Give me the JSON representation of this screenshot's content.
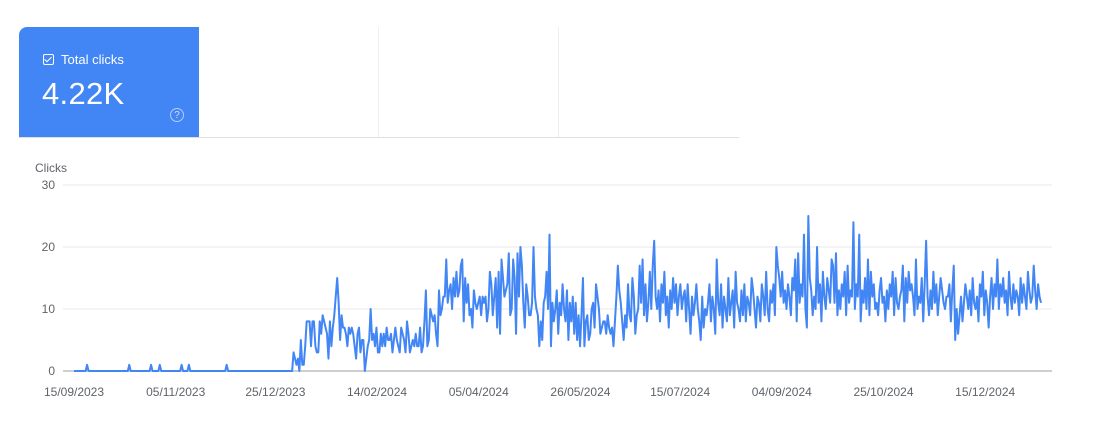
{
  "metric_card": {
    "label": "Total clicks",
    "value": "4.22K",
    "checked": true,
    "help_glyph": "?",
    "color": "#4285f4"
  },
  "chart_data": {
    "type": "line",
    "ylabel": "Clicks",
    "ylim": [
      0,
      30
    ],
    "y_ticks": [
      0,
      10,
      20,
      30
    ],
    "x_ticks": [
      "15/09/2023",
      "05/11/2023",
      "25/12/2023",
      "14/02/2024",
      "05/04/2024",
      "26/05/2024",
      "15/07/2024",
      "04/09/2024",
      "25/10/2024",
      "15/12/2024"
    ],
    "x_range": [
      "15/09/2023",
      "12/01/2025"
    ],
    "grid": true,
    "series": [
      {
        "color": "#4285f4",
        "values": [
          0,
          0,
          0,
          0,
          0,
          0,
          0,
          0,
          0,
          1,
          0,
          0,
          0,
          0,
          0,
          0,
          0,
          0,
          0,
          0,
          0,
          0,
          0,
          0,
          0,
          0,
          0,
          0,
          0,
          0,
          0,
          0,
          0,
          0,
          0,
          0,
          0,
          0,
          1,
          0,
          0,
          0,
          0,
          0,
          0,
          0,
          0,
          0,
          0,
          0,
          0,
          0,
          0,
          1,
          0,
          0,
          0,
          0,
          0,
          1,
          0,
          0,
          0,
          0,
          0,
          0,
          0,
          0,
          0,
          0,
          0,
          0,
          0,
          0,
          1,
          0,
          0,
          0,
          0,
          1,
          0,
          0,
          0,
          0,
          0,
          0,
          0,
          0,
          0,
          0,
          0,
          0,
          0,
          0,
          0,
          0,
          0,
          0,
          0,
          0,
          0,
          0,
          0,
          0,
          0,
          1,
          0,
          0,
          0,
          0,
          0,
          0,
          0,
          0,
          0,
          0,
          0,
          0,
          0,
          0,
          0,
          0,
          0,
          0,
          0,
          0,
          0,
          0,
          0,
          0,
          0,
          0,
          0,
          0,
          0,
          0,
          0,
          0,
          0,
          0,
          0,
          0,
          0,
          0,
          0,
          0,
          0,
          0,
          0,
          0,
          0,
          3,
          2,
          1,
          2,
          0,
          5,
          1,
          1,
          4,
          8,
          8,
          8,
          4,
          8,
          8,
          4,
          3,
          3,
          8,
          6,
          9,
          8,
          7,
          6,
          2,
          8,
          4,
          7,
          9,
          12,
          15,
          11,
          5,
          9,
          7,
          7,
          6,
          4,
          7,
          6,
          7,
          6,
          4,
          2,
          6,
          7,
          3,
          5,
          5,
          0,
          2,
          4,
          5,
          10,
          5,
          6,
          4,
          7,
          3,
          3,
          6,
          4,
          6,
          4,
          7,
          5,
          5,
          6,
          3,
          5,
          7,
          5,
          4,
          3,
          7,
          6,
          5,
          3,
          8,
          6,
          3,
          4,
          5,
          4,
          6,
          4,
          4,
          7,
          3,
          4,
          8,
          13,
          4,
          5,
          10,
          9,
          8,
          9,
          6,
          4,
          13,
          9,
          10,
          12,
          12,
          18,
          11,
          13,
          14,
          10,
          15,
          12,
          16,
          12,
          13,
          17,
          18,
          8,
          15,
          11,
          14,
          9,
          10,
          7,
          13,
          11,
          10,
          11,
          12,
          9,
          12,
          11,
          12,
          8,
          10,
          16,
          14,
          9,
          12,
          15,
          7,
          16,
          6,
          18,
          15,
          12,
          13,
          14,
          19,
          9,
          10,
          18,
          15,
          6,
          19,
          12,
          20,
          17,
          11,
          7,
          14,
          12,
          9,
          9,
          11,
          20,
          12,
          10,
          9,
          4,
          8,
          5,
          11,
          12,
          16,
          10,
          22,
          4,
          11,
          8,
          10,
          13,
          6,
          11,
          9,
          14,
          10,
          8,
          13,
          5,
          11,
          8,
          12,
          6,
          11,
          5,
          9,
          4,
          9,
          15,
          4,
          8,
          9,
          5,
          6,
          10,
          11,
          7,
          14,
          12,
          10,
          6,
          7,
          8,
          8,
          6,
          9,
          7,
          6,
          7,
          4,
          8,
          12,
          17,
          13,
          11,
          8,
          5,
          9,
          7,
          14,
          9,
          8,
          15,
          12,
          6,
          9,
          10,
          17,
          11,
          18,
          9,
          14,
          8,
          11,
          16,
          10,
          17,
          21,
          12,
          10,
          13,
          8,
          14,
          11,
          16,
          9,
          12,
          7,
          13,
          10,
          15,
          11,
          14,
          9,
          12,
          14,
          10,
          12,
          13,
          8,
          14,
          10,
          6,
          12,
          9,
          11,
          14,
          10,
          8,
          5,
          12,
          7,
          10,
          9,
          11,
          14,
          8,
          12,
          10,
          6,
          18,
          11,
          9,
          14,
          7,
          12,
          10,
          8,
          15,
          9,
          11,
          13,
          7,
          16,
          11,
          10,
          8,
          13,
          9,
          14,
          8,
          12,
          11,
          9,
          15,
          13,
          10,
          7,
          12,
          11,
          8,
          14,
          12,
          9,
          16,
          10,
          8,
          13,
          11,
          14,
          9,
          20,
          17,
          15,
          12,
          16,
          11,
          13,
          10,
          14,
          12,
          9,
          15,
          13,
          18,
          8,
          19,
          11,
          14,
          12,
          22,
          10,
          7,
          25,
          15,
          13,
          9,
          12,
          10,
          20,
          11,
          14,
          8,
          16,
          12,
          10,
          15,
          13,
          11,
          18,
          17,
          11,
          19,
          9,
          13,
          10,
          14,
          12,
          16,
          9,
          17,
          11,
          13,
          12,
          24,
          10,
          14,
          12,
          22,
          8,
          13,
          11,
          15,
          10,
          18,
          9,
          16,
          12,
          14,
          10,
          11,
          9,
          13,
          15,
          11,
          12,
          8,
          13,
          10,
          14,
          12,
          16,
          9,
          15,
          11,
          10,
          12,
          13,
          17,
          8,
          15,
          11,
          16,
          13,
          14,
          12,
          9,
          18,
          10,
          12,
          11,
          15,
          8,
          14,
          21,
          12,
          9,
          13,
          10,
          16,
          11,
          14,
          9,
          12,
          15,
          13,
          11,
          10,
          12,
          12,
          14,
          8,
          13,
          17,
          5,
          10,
          6,
          9,
          12,
          8,
          11,
          14,
          12,
          10,
          13,
          9,
          15,
          11,
          10,
          12,
          8,
          14,
          12,
          16,
          9,
          13,
          11,
          7,
          12,
          15,
          10,
          14,
          12,
          18,
          10,
          14,
          12,
          15,
          11,
          13,
          9,
          16,
          12,
          10,
          14,
          11,
          13,
          12,
          9,
          15,
          11,
          14,
          12,
          10,
          16,
          13,
          11,
          12,
          17,
          13,
          10,
          14,
          12,
          11
        ]
      }
    ]
  }
}
